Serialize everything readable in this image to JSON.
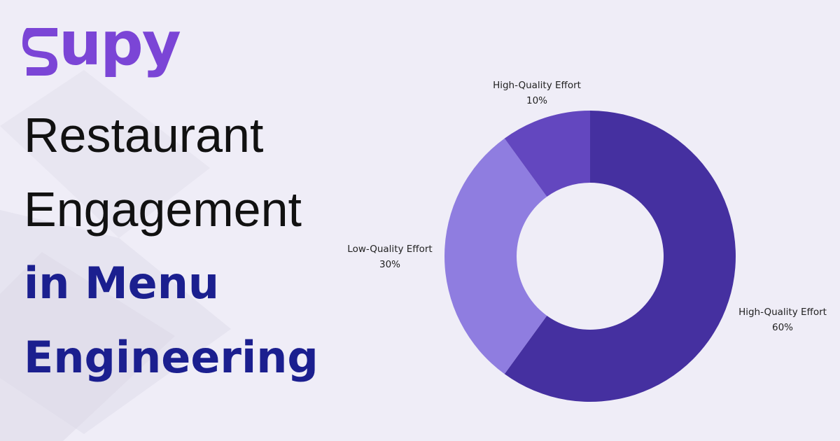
{
  "colors": {
    "background": "#efedf7",
    "brand": "#7b45d6",
    "headline_dark": "#111111",
    "headline_accent": "#1b1f8f",
    "slice_high": "#4530a0",
    "slice_low": "#8f7de0",
    "slice_small": "#6347bf"
  },
  "brand": {
    "logo_text": "upy",
    "logo_icon": "supy-swirl-icon"
  },
  "headline": {
    "line1": "Restaurant",
    "line2": "Engagement",
    "line3": "in Menu",
    "line4": "Engineering"
  },
  "chart_data": {
    "type": "pie",
    "donut": true,
    "title": "",
    "slices": [
      {
        "label": "High-Quality Effort",
        "value": 60,
        "value_label": "60%",
        "color": "#4530a0"
      },
      {
        "label": "Low-Quality Effort",
        "value": 30,
        "value_label": "30%",
        "color": "#8f7de0"
      },
      {
        "label": "High-Quality Effort",
        "value": 10,
        "value_label": "10%",
        "color": "#6347bf"
      }
    ]
  }
}
